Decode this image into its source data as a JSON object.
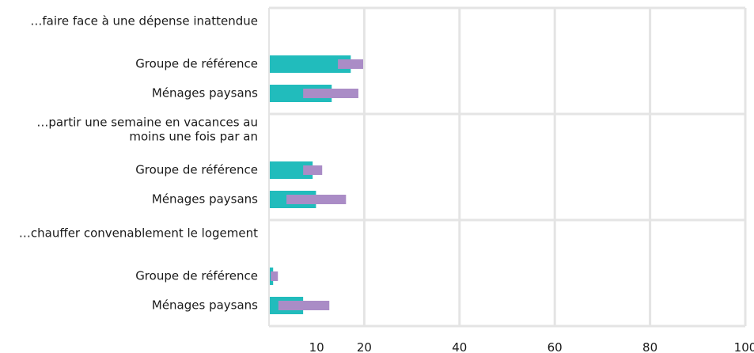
{
  "chart_data": {
    "type": "bar",
    "orientation": "horizontal",
    "title": "",
    "xlabel": "",
    "ylabel": "",
    "xlim": [
      0,
      100
    ],
    "x_ticks": [
      10,
      20,
      40,
      60,
      80,
      100
    ],
    "grid": true,
    "legend": "none",
    "groups": [
      {
        "label_lines": [
          "…faire face à une dépense inattendue"
        ],
        "bars": [
          {
            "label": "Groupe de référence",
            "value": 17,
            "range": [
              14.3,
              19.6
            ]
          },
          {
            "label": "Ménages paysans",
            "value": 13,
            "range": [
              7,
              18.6
            ]
          }
        ]
      },
      {
        "label_lines": [
          "…partir une semaine en vacances au",
          "moins une fois par an"
        ],
        "bars": [
          {
            "label": "Groupe de référence",
            "value": 9,
            "range": [
              7,
              11
            ]
          },
          {
            "label": "Ménages paysans",
            "value": 9.7,
            "range": [
              3.5,
              16
            ]
          }
        ]
      },
      {
        "label_lines": [
          "…chauffer convenablement le logement"
        ],
        "bars": [
          {
            "label": "Groupe de référence",
            "value": 0.7,
            "range": [
              0.2,
              1.7
            ]
          },
          {
            "label": "Ménages paysans",
            "value": 7,
            "range": [
              1.8,
              12.5
            ]
          }
        ]
      }
    ],
    "colors": {
      "bar": "#21bcbc",
      "range": "#aa8cc6",
      "grid": "#e4e4e4"
    }
  }
}
